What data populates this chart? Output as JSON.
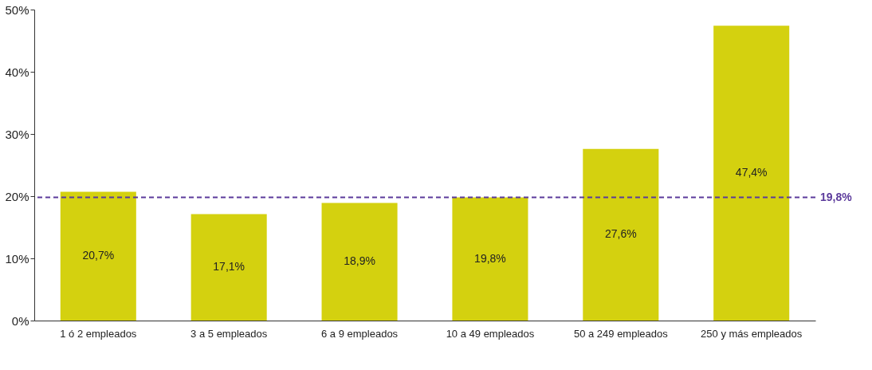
{
  "chart_data": {
    "type": "bar",
    "categories": [
      "1 ó 2 empleados",
      "3 a 5 empleados",
      "6 a 9 empleados",
      "10 a 49 empleados",
      "50 a 249 empleados",
      "250 y más empleados"
    ],
    "values": [
      20.7,
      17.1,
      18.9,
      19.8,
      27.6,
      47.4
    ],
    "value_labels": [
      "20,7%",
      "17,1%",
      "18,9%",
      "19,8%",
      "27,6%",
      "47,4%"
    ],
    "color": "#d4d10f",
    "ylim": [
      0,
      50
    ],
    "yticks": [
      {
        "value": 0,
        "label": "0%"
      },
      {
        "value": 10,
        "label": "10%"
      },
      {
        "value": 20,
        "label": "20%"
      },
      {
        "value": 30,
        "label": "30%"
      },
      {
        "value": 40,
        "label": "40%"
      },
      {
        "value": 50,
        "label": "50%"
      }
    ],
    "ref_lines": [
      {
        "axis": "y",
        "value": 19.8,
        "label": "19,8%",
        "color": "#5b3a9b",
        "line_style": "dashed"
      }
    ],
    "grid": false
  }
}
